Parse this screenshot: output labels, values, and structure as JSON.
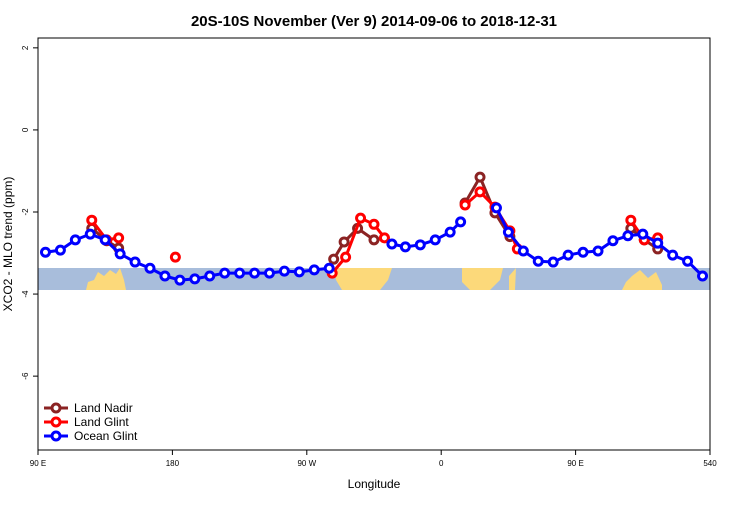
{
  "chart_data": {
    "type": "line",
    "title": "20S-10S November (Ver 9)   2014-09-06 to 2018-12-31",
    "x_label": "Longitude",
    "y_label": "XCO2 - MLO trend (ppm)",
    "xlim": [
      90,
      540
    ],
    "ylim": [
      -7.8,
      2.24
    ],
    "xticks": [
      {
        "value": 90,
        "label": "90 E"
      },
      180,
      {
        "value": 270,
        "label": "90 W"
      },
      {
        "value": 360,
        "label": "0"
      },
      {
        "value": 450,
        "label": "90 E"
      },
      540
    ],
    "yticks": [
      2,
      0,
      -2,
      -4,
      -6
    ],
    "legend": "bottomleft",
    "series": [
      {
        "name": "Land Nadir",
        "color": "#8b2323",
        "x": [
          126,
          136,
          144,
          null,
          288,
          295,
          304,
          315,
          null,
          376,
          386,
          396,
          406,
          null,
          487,
          496,
          505
        ],
        "values": [
          -2.4,
          -2.7,
          -2.88,
          null,
          -3.15,
          -2.73,
          -2.4,
          -2.68,
          null,
          -1.78,
          -1.15,
          -2.02,
          -2.6,
          null,
          -2.4,
          -2.68,
          -2.9
        ]
      },
      {
        "name": "Land Glint",
        "color": "#ff0000",
        "x": [
          126,
          136,
          144,
          null,
          182,
          null,
          287,
          296,
          306,
          315,
          322,
          null,
          376,
          386,
          396,
          406,
          411,
          null,
          487,
          496,
          505
        ],
        "values": [
          -2.2,
          -2.68,
          -2.63,
          null,
          -3.1,
          null,
          -3.49,
          -3.1,
          -2.15,
          -2.3,
          -2.63,
          null,
          -1.83,
          -1.51,
          -1.88,
          -2.46,
          -2.9,
          null,
          -2.2,
          -2.68,
          -2.63
        ]
      },
      {
        "name": "Ocean Glint",
        "color": "#0000ff",
        "x": [
          95,
          105,
          115,
          125,
          135,
          145,
          155,
          165,
          175,
          185,
          195,
          205,
          215,
          225,
          235,
          245,
          255,
          265,
          275,
          285,
          null,
          327,
          336,
          346,
          356,
          366,
          373,
          null,
          397,
          405,
          415,
          425,
          435,
          445,
          455,
          465,
          475,
          485,
          495,
          505,
          515,
          525,
          535
        ],
        "values": [
          -2.98,
          -2.93,
          -2.68,
          -2.54,
          -2.68,
          -3.02,
          -3.22,
          -3.37,
          -3.56,
          -3.66,
          -3.63,
          -3.56,
          -3.49,
          -3.49,
          -3.49,
          -3.49,
          -3.44,
          -3.46,
          -3.41,
          -3.37,
          null,
          -2.78,
          -2.85,
          -2.8,
          -2.68,
          -2.49,
          -2.24,
          null,
          -1.9,
          -2.49,
          -2.95,
          -3.2,
          -3.22,
          -3.05,
          -2.98,
          -2.95,
          -2.7,
          -2.58,
          -2.54,
          -2.76,
          -3.05,
          -3.2,
          -3.56
        ]
      }
    ]
  }
}
